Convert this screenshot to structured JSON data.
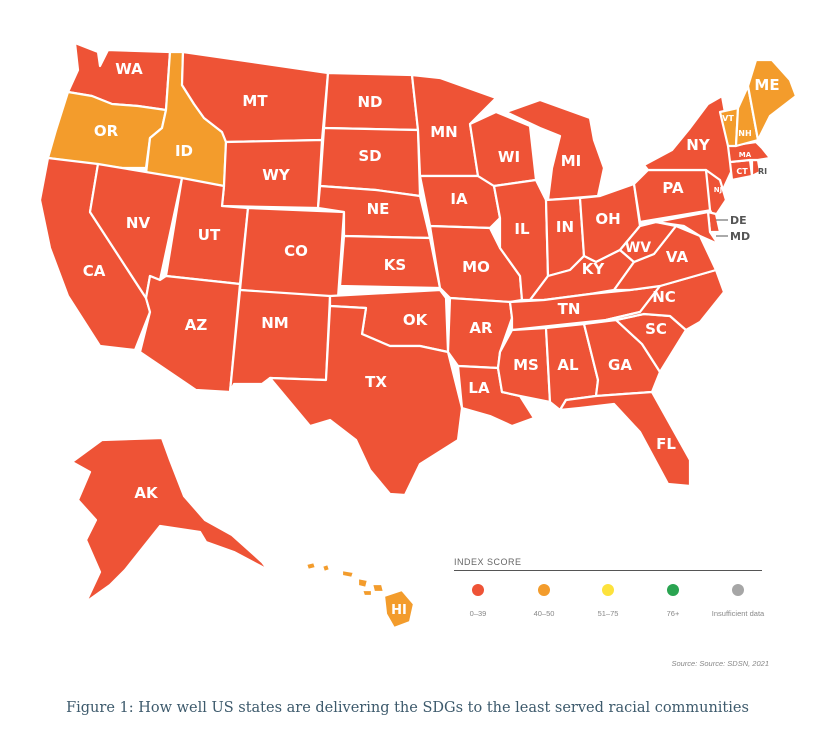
{
  "colors": {
    "0-39": "#ee5336",
    "40-50": "#f39c2c",
    "51-75": "#fde23c",
    "76+": "#2aa451",
    "insufficient": "#a6a6a6"
  },
  "states": {
    "WA": "0-39",
    "OR": "40-50",
    "ID": "40-50",
    "MT": "0-39",
    "WY": "0-39",
    "CA": "0-39",
    "NV": "0-39",
    "UT": "0-39",
    "CO": "0-39",
    "AZ": "0-39",
    "NM": "0-39",
    "ND": "0-39",
    "SD": "0-39",
    "NE": "0-39",
    "KS": "0-39",
    "OK": "0-39",
    "TX": "0-39",
    "MN": "0-39",
    "IA": "0-39",
    "MO": "0-39",
    "AR": "0-39",
    "LA": "0-39",
    "WI": "0-39",
    "IL": "0-39",
    "MI": "0-39",
    "IN": "0-39",
    "OH": "0-39",
    "KY": "0-39",
    "TN": "0-39",
    "MS": "0-39",
    "AL": "0-39",
    "GA": "0-39",
    "FL": "0-39",
    "SC": "0-39",
    "NC": "0-39",
    "VA": "0-39",
    "WV": "0-39",
    "PA": "0-39",
    "NY": "0-39",
    "NJ": "0-39",
    "DE": "0-39",
    "MD": "0-39",
    "CT": "0-39",
    "RI": "0-39",
    "MA": "0-39",
    "VT": "40-50",
    "NH": "40-50",
    "ME": "40-50",
    "AK": "0-39",
    "HI": "40-50"
  },
  "legend": {
    "title": "INDEX SCORE",
    "items": [
      {
        "label": "0–39",
        "color": "#ee5336"
      },
      {
        "label": "40–50",
        "color": "#f39c2c"
      },
      {
        "label": "51–75",
        "color": "#fde23c"
      },
      {
        "label": "76+",
        "color": "#2aa451"
      },
      {
        "label": "Insufficient data",
        "color": "#a6a6a6"
      }
    ]
  },
  "source": "Source: Source: SDSN, 2021",
  "caption": "Figure 1: How well US states are delivering the SDGs to the least served racial communities"
}
